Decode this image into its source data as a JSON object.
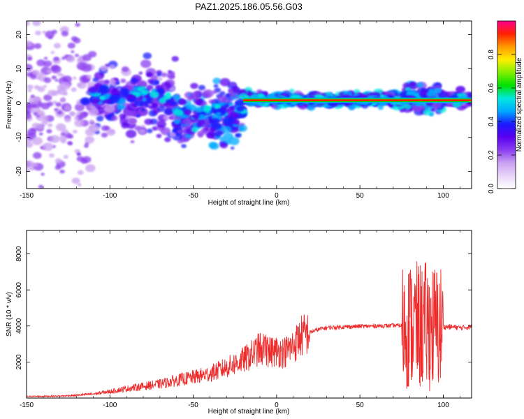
{
  "title": "PAZ1.2025.186.05.56.G03",
  "chart_data": [
    {
      "type": "heatmap",
      "xlabel": "Height of straight line (km)",
      "ylabel": "Frequency (Hz)",
      "xlim": [
        -150,
        117
      ],
      "ylim": [
        -25,
        24
      ],
      "xticks": [
        -150,
        -100,
        -50,
        0,
        50,
        100
      ],
      "yticks": [
        -20,
        -10,
        0,
        10,
        20
      ],
      "colorbar": {
        "label": "Normalized spectral amplitude",
        "range": [
          0,
          1
        ],
        "ticks": [
          "0.0",
          "0.2",
          "0.4",
          "0.6",
          "0.8"
        ],
        "colors": [
          "#ffffff",
          "#e8d4f8",
          "#c9a0f2",
          "#8a3df0",
          "#5a00f0",
          "#1a1aff",
          "#00aaff",
          "#00e8e0",
          "#00e000",
          "#80f000",
          "#ffee00",
          "#ff9900",
          "#ff2200",
          "#ff0090"
        ]
      },
      "carrier_line": {
        "x_start": -20,
        "x_end": 117,
        "frequency": 0.8
      }
    },
    {
      "type": "line",
      "xlabel": "Height of straight line (km)",
      "ylabel": "SNR (10 * v/v)",
      "xlim": [
        -150,
        117
      ],
      "ylim": [
        0,
        9300
      ],
      "xticks": [
        -150,
        -100,
        -50,
        0,
        50,
        100
      ],
      "yticks": [
        2000,
        4000,
        6000,
        8000
      ],
      "line_color": "#ee2a2a",
      "series": [
        {
          "x": [
            -150,
            -140,
            -130,
            -120,
            -110,
            -100,
            -90,
            -80,
            -70,
            -60,
            -50,
            -40,
            -30,
            -20,
            -15,
            -10,
            -5,
            0,
            5,
            10,
            15,
            20,
            25,
            30,
            40,
            50,
            60,
            70,
            75,
            78,
            80,
            82,
            85,
            88,
            90,
            92,
            95,
            98,
            100,
            105,
            110,
            117
          ],
          "values": [
            90,
            100,
            110,
            150,
            230,
            360,
            520,
            650,
            780,
            980,
            1150,
            1350,
            1700,
            2100,
            2400,
            2750,
            2550,
            2600,
            2550,
            2900,
            3450,
            3650,
            3800,
            3900,
            3950,
            3980,
            4000,
            4020,
            4030,
            4050,
            4000,
            4100,
            3950,
            4050,
            4000,
            3950,
            3900,
            3950,
            3950,
            3950,
            3900,
            3950
          ]
        }
      ]
    }
  ]
}
